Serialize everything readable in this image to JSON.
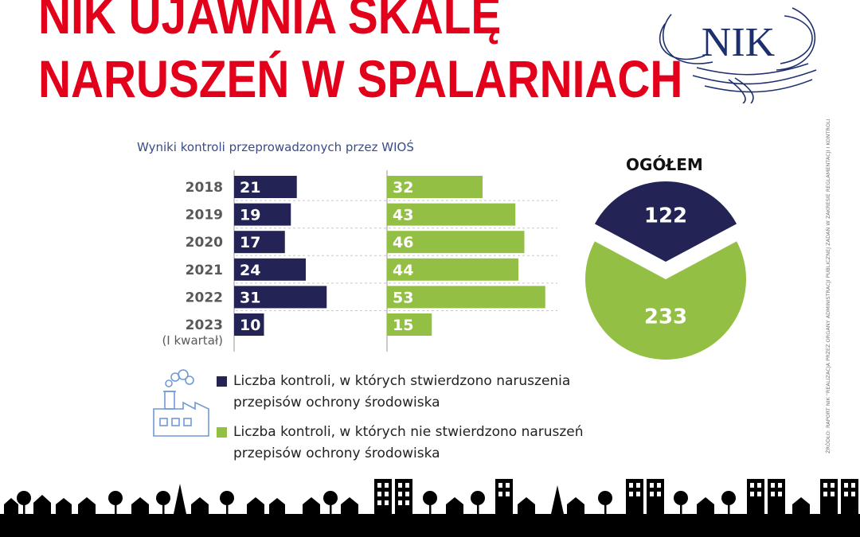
{
  "title": {
    "line1": "NIK UJAWNIA SKALĘ",
    "line2": "NARUSZEŃ W SPALARNIACH"
  },
  "logo_text": "NIK",
  "source_note": "ŹRÓDŁO: RAPORT NIK \"REALIZACJA PRZEZ ORGANY ADMINISTRACJI PUBLICZNEJ ZADAŃ W ZAKRESIE REGLAMENTACJI I KONTROLI DZIAŁALNOŚCI SPALARNI\"",
  "colors": {
    "title_red": "#e3001b",
    "navy": "#232455",
    "green": "#94bf45"
  },
  "chart_data": [
    {
      "type": "bar",
      "orientation": "horizontal",
      "title": "Wyniki kontroli przeprowadzonych przez WIOŚ",
      "categories": [
        "2018",
        "2019",
        "2020",
        "2021",
        "2022",
        "2023"
      ],
      "category_sublabels": [
        "",
        "",
        "",
        "",
        "",
        "(I kwartał)"
      ],
      "series": [
        {
          "name": "Liczba kontroli, w których stwierdzono naruszenia przepisów ochrony środowiska",
          "color": "#232455",
          "values": [
            21,
            19,
            17,
            24,
            31,
            10
          ]
        },
        {
          "name": "Liczba kontroli, w których nie stwierdzono naruszeń przepisów ochrony środowiska",
          "color": "#94bf45",
          "values": [
            32,
            43,
            46,
            44,
            53,
            15
          ]
        }
      ]
    },
    {
      "type": "pie",
      "title": "OGÓŁEM",
      "slices": [
        {
          "value": 122,
          "label": "122",
          "color": "#232455"
        },
        {
          "value": 233,
          "label": "233",
          "color": "#94bf45"
        }
      ]
    }
  ]
}
